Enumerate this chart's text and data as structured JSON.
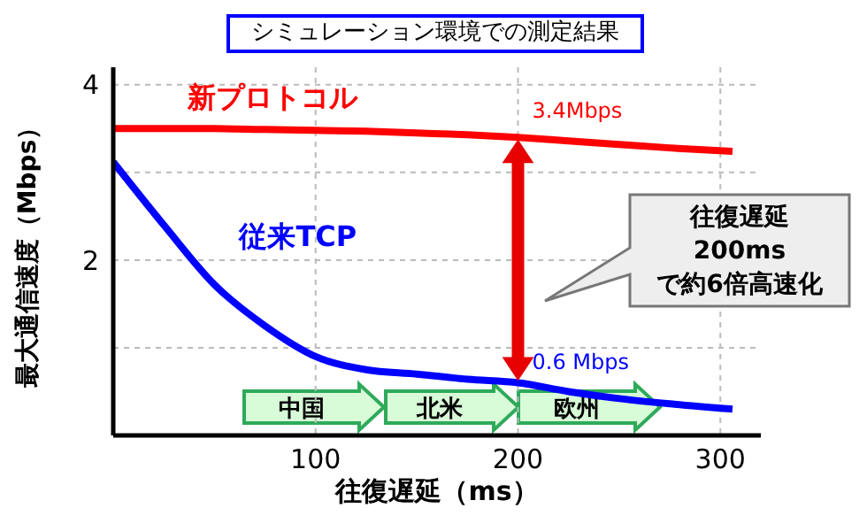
{
  "chart_data": {
    "type": "line",
    "title": "シミュレーション環境での測定結果",
    "xlabel": "往復遅延（ms）",
    "ylabel": "最大通信速度（Mbps）",
    "x": [
      0,
      25,
      50,
      75,
      100,
      125,
      150,
      175,
      200,
      225,
      250,
      275,
      306
    ],
    "series": [
      {
        "name": "新プロトコル",
        "color": "#ff0000",
        "values": [
          3.5,
          3.5,
          3.5,
          3.49,
          3.48,
          3.47,
          3.45,
          3.43,
          3.4,
          3.36,
          3.32,
          3.28,
          3.24
        ]
      },
      {
        "name": "従来TCP",
        "color": "#0000ff",
        "values": [
          3.12,
          2.4,
          1.72,
          1.25,
          0.9,
          0.75,
          0.7,
          0.64,
          0.6,
          0.5,
          0.42,
          0.36,
          0.3
        ]
      }
    ],
    "xlim": [
      0,
      320
    ],
    "xticks": [
      100,
      200,
      300
    ],
    "ylim": [
      0,
      4.2
    ],
    "yticks": [
      {
        "value": 1,
        "label": null
      },
      2,
      {
        "value": 3,
        "label": null
      },
      4
    ],
    "grid": true,
    "annotations": [
      {
        "text": "3.4Mbps",
        "x": 200,
        "y": 3.4
      },
      {
        "text": "0.6 Mbps",
        "x": 200,
        "y": 0.6
      },
      "往復遅延\n200ms\nで約6倍高速化",
      "中国",
      "北米",
      "欧州"
    ]
  }
}
